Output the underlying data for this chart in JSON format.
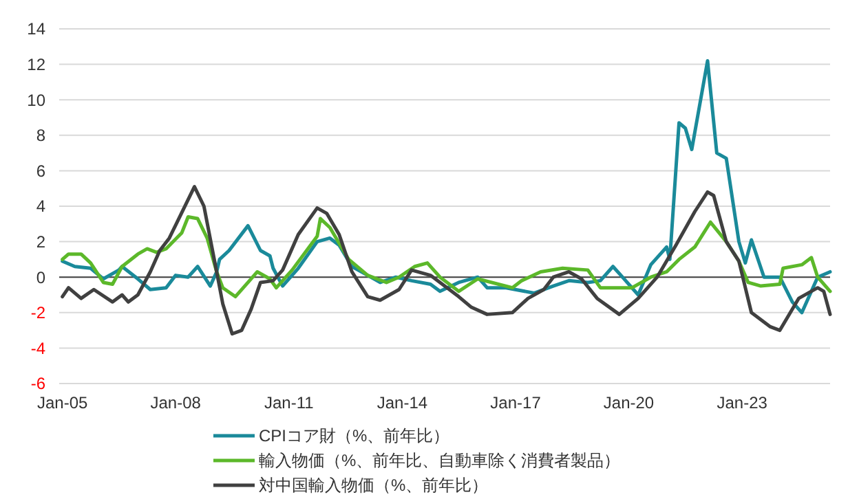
{
  "chart_data": {
    "type": "line",
    "xlim": [
      "2004-12",
      "2025-05"
    ],
    "xticks": [
      {
        "value": "2005-01",
        "label": "Jan-05"
      },
      {
        "value": "2008-01",
        "label": "Jan-08"
      },
      {
        "value": "2011-01",
        "label": "Jan-11"
      },
      {
        "value": "2014-01",
        "label": "Jan-14"
      },
      {
        "value": "2017-01",
        "label": "Jan-17"
      },
      {
        "value": "2020-01",
        "label": "Jan-20"
      },
      {
        "value": "2023-01",
        "label": "Jan-23"
      }
    ],
    "ylim": [
      -6,
      14
    ],
    "yticks": [
      -6,
      -4,
      -2,
      0,
      2,
      4,
      6,
      8,
      10,
      12,
      14
    ],
    "grid": "y",
    "legend": "bottom",
    "marker": "none",
    "line_style": "solid",
    "ref_lines": [
      {
        "axis": "y",
        "value": 0,
        "color": "#404040"
      }
    ],
    "series": [
      {
        "name": "CPIコア財（%、前年比）",
        "color": "#1a8a9a",
        "x": [
          "2005-01",
          "2005-05",
          "2005-10",
          "2006-02",
          "2006-07",
          "2006-08",
          "2007-01",
          "2007-05",
          "2007-10",
          "2008-01",
          "2008-05",
          "2008-08",
          "2008-12",
          "2009-02",
          "2009-03",
          "2009-06",
          "2009-12",
          "2010-04",
          "2010-07",
          "2010-08",
          "2010-11",
          "2011-04",
          "2011-10",
          "2012-02",
          "2012-05",
          "2012-09",
          "2013-02",
          "2013-06",
          "2013-11",
          "2014-04",
          "2014-10",
          "2015-01",
          "2015-07",
          "2016-01",
          "2016-04",
          "2016-10",
          "2017-07",
          "2018-01",
          "2018-06",
          "2018-12",
          "2019-04",
          "2019-08",
          "2019-11",
          "2020-04",
          "2020-08",
          "2021-01",
          "2021-02",
          "2021-05",
          "2021-07",
          "2021-09",
          "2022-02",
          "2022-05",
          "2022-08",
          "2022-12",
          "2023-02",
          "2023-04",
          "2023-08",
          "2024-01",
          "2024-05",
          "2024-08",
          "2025-01",
          "2025-05"
        ],
        "values": [
          0.9,
          0.6,
          0.5,
          -0.1,
          0.4,
          0.6,
          -0.1,
          -0.7,
          -0.6,
          0.1,
          0.0,
          0.6,
          -0.5,
          0.3,
          1.0,
          1.5,
          2.9,
          1.5,
          1.2,
          0.5,
          -0.5,
          0.5,
          2.0,
          2.2,
          1.8,
          0.6,
          0.1,
          -0.3,
          0.0,
          -0.2,
          -0.4,
          -0.8,
          -0.3,
          0.0,
          -0.6,
          -0.6,
          -0.9,
          -0.5,
          -0.2,
          -0.3,
          -0.2,
          0.6,
          0.0,
          -1.0,
          0.7,
          1.7,
          1.0,
          8.7,
          8.4,
          7.2,
          12.2,
          7.0,
          6.7,
          2.0,
          0.8,
          2.1,
          0.0,
          0.0,
          -1.4,
          -2.0,
          0.0,
          0.3
        ]
      },
      {
        "name": "輸入物価（%、前年比、自動車除く消費者製品）",
        "color": "#5cb82a",
        "x": [
          "2005-01",
          "2005-03",
          "2005-07",
          "2005-10",
          "2006-02",
          "2006-05",
          "2006-08",
          "2007-01",
          "2007-04",
          "2007-07",
          "2007-10",
          "2008-03",
          "2008-05",
          "2008-08",
          "2008-11",
          "2009-02",
          "2009-04",
          "2009-08",
          "2009-12",
          "2010-03",
          "2010-07",
          "2010-09",
          "2011-02",
          "2011-10",
          "2011-11",
          "2012-02",
          "2012-08",
          "2013-02",
          "2013-08",
          "2013-12",
          "2014-05",
          "2014-09",
          "2015-01",
          "2015-07",
          "2016-01",
          "2016-12",
          "2017-03",
          "2017-09",
          "2018-04",
          "2018-12",
          "2019-04",
          "2020-02",
          "2020-08",
          "2021-01",
          "2021-05",
          "2021-10",
          "2022-03",
          "2022-08",
          "2022-12",
          "2023-03",
          "2023-07",
          "2024-01",
          "2024-02",
          "2024-08",
          "2024-11",
          "2025-01",
          "2025-05"
        ],
        "values": [
          1.0,
          1.3,
          1.3,
          0.8,
          -0.3,
          -0.4,
          0.6,
          1.3,
          1.6,
          1.4,
          1.6,
          2.5,
          3.4,
          3.3,
          2.2,
          0.3,
          -0.6,
          -1.1,
          -0.3,
          0.3,
          -0.1,
          -0.6,
          0.4,
          2.3,
          3.3,
          2.8,
          1.0,
          0.1,
          -0.3,
          0.0,
          0.6,
          0.8,
          0.0,
          -0.8,
          -0.1,
          -0.6,
          -0.2,
          0.3,
          0.5,
          0.4,
          -0.6,
          -0.6,
          0.0,
          0.3,
          1.0,
          1.7,
          3.1,
          2.0,
          0.9,
          -0.3,
          -0.5,
          -0.4,
          0.5,
          0.7,
          1.1,
          0.0,
          -0.8
        ]
      },
      {
        "name": "対中国輸入物価（%、前年比）",
        "color": "#404040",
        "x": [
          "2005-01",
          "2005-03",
          "2005-07",
          "2005-11",
          "2006-05",
          "2006-08",
          "2006-10",
          "2007-01",
          "2007-05",
          "2007-08",
          "2007-11",
          "2008-02",
          "2008-07",
          "2008-10",
          "2009-02",
          "2009-04",
          "2009-07",
          "2009-10",
          "2010-01",
          "2010-04",
          "2010-08",
          "2010-11",
          "2011-04",
          "2011-10",
          "2012-01",
          "2012-05",
          "2012-09",
          "2013-02",
          "2013-06",
          "2013-12",
          "2014-04",
          "2014-10",
          "2015-07",
          "2015-11",
          "2016-04",
          "2016-12",
          "2017-05",
          "2017-10",
          "2018-01",
          "2018-06",
          "2018-10",
          "2019-03",
          "2019-10",
          "2020-04",
          "2020-10",
          "2021-04",
          "2021-10",
          "2022-02",
          "2022-04",
          "2022-08",
          "2022-12",
          "2023-04",
          "2023-10",
          "2024-01",
          "2024-07",
          "2025-01",
          "2025-03",
          "2025-05"
        ],
        "values": [
          -1.1,
          -0.6,
          -1.2,
          -0.7,
          -1.4,
          -1.0,
          -1.4,
          -1.0,
          0.3,
          1.5,
          2.2,
          3.3,
          5.1,
          4.0,
          0.3,
          -1.5,
          -3.2,
          -3.0,
          -1.8,
          -0.3,
          -0.2,
          0.4,
          2.4,
          3.9,
          3.6,
          2.4,
          0.3,
          -1.1,
          -1.3,
          -0.7,
          0.4,
          0.1,
          -1.1,
          -1.7,
          -2.1,
          -2.0,
          -1.2,
          -0.7,
          0.0,
          0.3,
          -0.1,
          -1.2,
          -2.1,
          -1.2,
          0.0,
          1.8,
          3.7,
          4.8,
          4.6,
          2.0,
          0.9,
          -2.0,
          -2.8,
          -3.0,
          -1.2,
          -0.6,
          -0.8,
          -2.1
        ]
      }
    ]
  }
}
